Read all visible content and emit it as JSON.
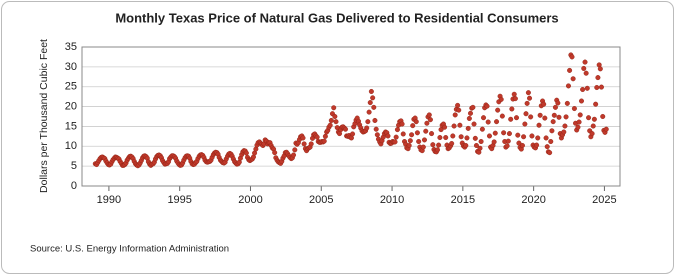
{
  "chart_data": {
    "type": "scatter",
    "title": "Monthly Texas Price of Natural Gas Delivered to Residential Consumers",
    "y_label": "Dollars per Thousand Cubic Feet",
    "source": "Source: U.S. Energy Information Administration",
    "color": "#c0392b",
    "grid": true,
    "xlim": [
      1988.1,
      2026.1
    ],
    "xticks": [
      1990,
      1995,
      2000,
      2005,
      2010,
      2015,
      2020,
      2025
    ],
    "ylim": [
      0,
      35
    ],
    "yticks": [
      0,
      5,
      10,
      15,
      20,
      25,
      30,
      35
    ],
    "x": [
      1989.04,
      1989.13,
      1989.21,
      1989.29,
      1989.38,
      1989.46,
      1989.54,
      1989.63,
      1989.71,
      1989.79,
      1989.88,
      1989.96,
      1990.04,
      1990.13,
      1990.21,
      1990.29,
      1990.38,
      1990.46,
      1990.54,
      1990.63,
      1990.71,
      1990.79,
      1990.88,
      1990.96,
      1991.04,
      1991.13,
      1991.21,
      1991.29,
      1991.38,
      1991.46,
      1991.54,
      1991.63,
      1991.71,
      1991.79,
      1991.88,
      1991.96,
      1992.04,
      1992.13,
      1992.21,
      1992.29,
      1992.38,
      1992.46,
      1992.54,
      1992.63,
      1992.71,
      1992.79,
      1992.88,
      1992.96,
      1993.04,
      1993.13,
      1993.21,
      1993.29,
      1993.38,
      1993.46,
      1993.54,
      1993.63,
      1993.71,
      1993.79,
      1993.88,
      1993.96,
      1994.04,
      1994.13,
      1994.21,
      1994.29,
      1994.38,
      1994.46,
      1994.54,
      1994.63,
      1994.71,
      1994.79,
      1994.88,
      1994.96,
      1995.04,
      1995.13,
      1995.21,
      1995.29,
      1995.38,
      1995.46,
      1995.54,
      1995.63,
      1995.71,
      1995.79,
      1995.88,
      1995.96,
      1996.04,
      1996.13,
      1996.21,
      1996.29,
      1996.38,
      1996.46,
      1996.54,
      1996.63,
      1996.71,
      1996.79,
      1996.88,
      1996.96,
      1997.04,
      1997.13,
      1997.21,
      1997.29,
      1997.38,
      1997.46,
      1997.54,
      1997.63,
      1997.71,
      1997.79,
      1997.88,
      1997.96,
      1998.04,
      1998.13,
      1998.21,
      1998.29,
      1998.38,
      1998.46,
      1998.54,
      1998.63,
      1998.71,
      1998.79,
      1998.88,
      1998.96,
      1999.04,
      1999.13,
      1999.21,
      1999.29,
      1999.38,
      1999.46,
      1999.54,
      1999.63,
      1999.71,
      1999.79,
      1999.88,
      1999.96,
      2000.04,
      2000.13,
      2000.21,
      2000.29,
      2000.38,
      2000.46,
      2000.54,
      2000.63,
      2000.71,
      2000.79,
      2000.88,
      2000.96,
      2001.04,
      2001.13,
      2001.21,
      2001.29,
      2001.38,
      2001.46,
      2001.54,
      2001.63,
      2001.71,
      2001.79,
      2001.88,
      2001.96,
      2002.04,
      2002.13,
      2002.21,
      2002.29,
      2002.38,
      2002.46,
      2002.54,
      2002.63,
      2002.71,
      2002.79,
      2002.88,
      2002.96,
      2003.04,
      2003.13,
      2003.21,
      2003.29,
      2003.38,
      2003.46,
      2003.54,
      2003.63,
      2003.71,
      2003.79,
      2003.88,
      2003.96,
      2004.04,
      2004.13,
      2004.21,
      2004.29,
      2004.38,
      2004.46,
      2004.54,
      2004.63,
      2004.71,
      2004.79,
      2004.88,
      2004.96,
      2005.04,
      2005.13,
      2005.21,
      2005.29,
      2005.38,
      2005.46,
      2005.54,
      2005.63,
      2005.71,
      2005.79,
      2005.88,
      2005.96,
      2006.04,
      2006.13,
      2006.21,
      2006.29,
      2006.38,
      2006.46,
      2006.54,
      2006.63,
      2006.71,
      2006.79,
      2006.88,
      2006.96,
      2007.04,
      2007.13,
      2007.21,
      2007.29,
      2007.38,
      2007.46,
      2007.54,
      2007.63,
      2007.71,
      2007.79,
      2007.88,
      2007.96,
      2008.04,
      2008.13,
      2008.21,
      2008.29,
      2008.38,
      2008.46,
      2008.54,
      2008.63,
      2008.71,
      2008.79,
      2008.88,
      2008.96,
      2009.04,
      2009.13,
      2009.21,
      2009.29,
      2009.38,
      2009.46,
      2009.54,
      2009.63,
      2009.71,
      2009.79,
      2009.88,
      2009.96,
      2010.04,
      2010.13,
      2010.21,
      2010.29,
      2010.38,
      2010.46,
      2010.54,
      2010.63,
      2010.71,
      2010.79,
      2010.88,
      2010.96,
      2011.04,
      2011.13,
      2011.21,
      2011.29,
      2011.38,
      2011.46,
      2011.54,
      2011.63,
      2011.71,
      2011.79,
      2011.88,
      2011.96,
      2012.04,
      2012.13,
      2012.21,
      2012.29,
      2012.38,
      2012.46,
      2012.54,
      2012.63,
      2012.71,
      2012.79,
      2012.88,
      2012.96,
      2013.04,
      2013.13,
      2013.21,
      2013.29,
      2013.38,
      2013.46,
      2013.54,
      2013.63,
      2013.71,
      2013.79,
      2013.88,
      2013.96,
      2014.04,
      2014.13,
      2014.21,
      2014.29,
      2014.38,
      2014.46,
      2014.54,
      2014.63,
      2014.71,
      2014.79,
      2014.88,
      2014.96,
      2015.04,
      2015.13,
      2015.21,
      2015.29,
      2015.38,
      2015.46,
      2015.54,
      2015.63,
      2015.71,
      2015.79,
      2015.88,
      2015.96,
      2016.04,
      2016.13,
      2016.21,
      2016.29,
      2016.38,
      2016.46,
      2016.54,
      2016.63,
      2016.71,
      2016.79,
      2016.88,
      2016.96,
      2017.04,
      2017.13,
      2017.21,
      2017.29,
      2017.38,
      2017.46,
      2017.54,
      2017.63,
      2017.71,
      2017.79,
      2017.88,
      2017.96,
      2018.04,
      2018.13,
      2018.21,
      2018.29,
      2018.38,
      2018.46,
      2018.54,
      2018.63,
      2018.71,
      2018.79,
      2018.88,
      2018.96,
      2019.04,
      2019.13,
      2019.21,
      2019.29,
      2019.38,
      2019.46,
      2019.54,
      2019.63,
      2019.71,
      2019.79,
      2019.88,
      2019.96,
      2020.04,
      2020.13,
      2020.21,
      2020.29,
      2020.38,
      2020.46,
      2020.54,
      2020.63,
      2020.71,
      2020.79,
      2020.88,
      2020.96,
      2021.04,
      2021.13,
      2021.21,
      2021.29,
      2021.38,
      2021.46,
      2021.54,
      2021.63,
      2021.71,
      2021.79,
      2021.88,
      2021.96,
      2022.04,
      2022.13,
      2022.21,
      2022.29,
      2022.38,
      2022.46,
      2022.54,
      2022.63,
      2022.71,
      2022.79,
      2022.88,
      2022.96,
      2023.04,
      2023.13,
      2023.21,
      2023.29,
      2023.38,
      2023.46,
      2023.54,
      2023.63,
      2023.71,
      2023.79,
      2023.88,
      2023.96,
      2024.04,
      2024.13,
      2024.21,
      2024.29,
      2024.38,
      2024.46,
      2024.54,
      2024.63,
      2024.71,
      2024.79,
      2024.88,
      2024.96,
      2025.04,
      2025.13
    ],
    "values": [
      5.6,
      5.4,
      5.9,
      6.4,
      6.9,
      7.2,
      7.3,
      7.1,
      6.9,
      6.3,
      5.8,
      5.4,
      5.3,
      5.5,
      6.1,
      6.6,
      7.0,
      7.3,
      7.2,
      7.0,
      6.8,
      6.2,
      5.7,
      5.2,
      5.2,
      5.4,
      5.8,
      6.5,
      7.0,
      7.4,
      7.5,
      7.3,
      6.9,
      6.2,
      5.6,
      5.3,
      5.1,
      5.3,
      5.8,
      6.4,
      7.1,
      7.5,
      7.6,
      7.4,
      7.0,
      6.1,
      5.5,
      5.2,
      5.5,
      5.6,
      6.0,
      6.8,
      7.4,
      7.7,
      7.8,
      7.6,
      7.1,
      6.4,
      5.9,
      5.5,
      5.6,
      5.7,
      6.1,
      6.9,
      7.3,
      7.6,
      7.6,
      7.4,
      7.0,
      6.3,
      5.8,
      5.4,
      5.2,
      5.3,
      5.8,
      6.5,
      7.1,
      7.5,
      7.6,
      7.5,
      7.0,
      6.2,
      5.6,
      5.4,
      5.5,
      5.9,
      6.2,
      6.9,
      7.5,
      7.8,
      7.9,
      7.7,
      7.2,
      6.5,
      6.1,
      6.0,
      6.1,
      6.2,
      6.5,
      7.2,
      7.9,
      8.3,
      8.5,
      8.4,
      8.0,
      7.2,
      6.5,
      6.2,
      5.9,
      5.8,
      6.0,
      6.8,
      7.5,
      8.0,
      8.2,
      8.0,
      7.5,
      6.8,
      6.1,
      5.8,
      5.5,
      5.6,
      6.0,
      7.0,
      7.9,
      8.6,
      8.9,
      8.8,
      8.3,
      7.2,
      6.6,
      6.4,
      6.6,
      6.8,
      7.3,
      8.3,
      9.3,
      10.3,
      10.9,
      11.1,
      10.8,
      10.5,
      10.2,
      10.6,
      11.6,
      11.3,
      10.6,
      10.9,
      10.9,
      10.2,
      9.6,
      9.3,
      8.4,
      7.1,
      6.5,
      6.1,
      5.9,
      5.7,
      6.2,
      7.0,
      7.6,
      8.4,
      8.5,
      8.1,
      7.6,
      7.2,
      6.9,
      7.1,
      7.8,
      9.1,
      10.8,
      10.5,
      10.9,
      11.7,
      12.4,
      12.6,
      12.1,
      10.6,
      9.4,
      8.9,
      9.4,
      9.6,
      9.8,
      10.6,
      12.0,
      12.9,
      13.1,
      12.6,
      12.3,
      11.2,
      11.0,
      11.0,
      11.2,
      11.1,
      11.3,
      12.5,
      13.6,
      14.0,
      14.8,
      15.3,
      16.5,
      18.2,
      19.7,
      17.5,
      16.2,
      14.7,
      13.6,
      13.2,
      14.2,
      14.8,
      14.9,
      14.6,
      14.3,
      12.6,
      12.5,
      12.7,
      12.3,
      12.1,
      13.1,
      14.9,
      15.7,
      16.6,
      17.1,
      16.3,
      15.4,
      14.6,
      13.9,
      13.6,
      13.7,
      13.9,
      14.6,
      16.2,
      18.6,
      21.0,
      23.8,
      22.2,
      19.8,
      16.5,
      14.3,
      12.9,
      11.8,
      11.1,
      10.6,
      11.4,
      12.3,
      13.2,
      13.6,
      13.4,
      12.6,
      11.0,
      10.7,
      10.8,
      11.2,
      11.1,
      11.1,
      12.3,
      14.2,
      15.3,
      16.2,
      16.4,
      15.6,
      13.1,
      11.2,
      10.5,
      9.6,
      9.4,
      10.2,
      11.4,
      12.9,
      15.2,
      16.8,
      17.1,
      16.2,
      13.4,
      11.2,
      9.8,
      9.1,
      8.9,
      9.8,
      11.6,
      13.8,
      15.8,
      17.4,
      17.9,
      16.7,
      13.2,
      10.4,
      9.2,
      8.7,
      8.6,
      9.1,
      10.3,
      12.2,
      14.2,
      15.3,
      15.6,
      14.8,
      12.2,
      10.3,
      9.4,
      9.6,
      10.1,
      10.7,
      12.6,
      15.1,
      17.9,
      19.3,
      20.3,
      19.1,
      15.3,
      12.4,
      10.8,
      10.1,
      9.8,
      10.2,
      12.1,
      14.5,
      17.0,
      18.3,
      19.6,
      19.8,
      15.6,
      12.0,
      10.2,
      8.7,
      8.5,
      9.5,
      11.2,
      14.3,
      17.2,
      19.7,
      20.4,
      20.1,
      16.1,
      12.6,
      9.8,
      9.4,
      10.2,
      11.1,
      13.3,
      16.2,
      19.1,
      21.2,
      22.6,
      21.8,
      17.6,
      13.4,
      11.2,
      9.8,
      10.1,
      11.3,
      13.2,
      16.8,
      19.4,
      21.9,
      23.1,
      22.0,
      17.2,
      12.8,
      10.8,
      9.7,
      9.3,
      10.2,
      12.4,
      15.6,
      18.2,
      20.8,
      23.5,
      22.1,
      17.4,
      12.6,
      10.3,
      9.8,
      9.6,
      10.3,
      12.1,
      15.3,
      17.8,
      20.2,
      21.4,
      20.6,
      17.1,
      12.1,
      9.9,
      8.6,
      8.4,
      11.2,
      13.9,
      16.2,
      17.8,
      19.8,
      21.6,
      20.9,
      17.3,
      13.2,
      12.1,
      12.9,
      13.6,
      15.1,
      17.4,
      20.8,
      25.2,
      29.1,
      33.0,
      32.5,
      27.0,
      19.5,
      15.8,
      14.1,
      14.8,
      16.1,
      17.9,
      21.4,
      24.3,
      29.6,
      31.2,
      28.4,
      24.6,
      17.2,
      13.9,
      12.4,
      13.2,
      15.1,
      16.8,
      20.6,
      24.8,
      27.3,
      30.5,
      29.5,
      24.9,
      17.5,
      14.0,
      13.5,
      14.3
    ]
  }
}
